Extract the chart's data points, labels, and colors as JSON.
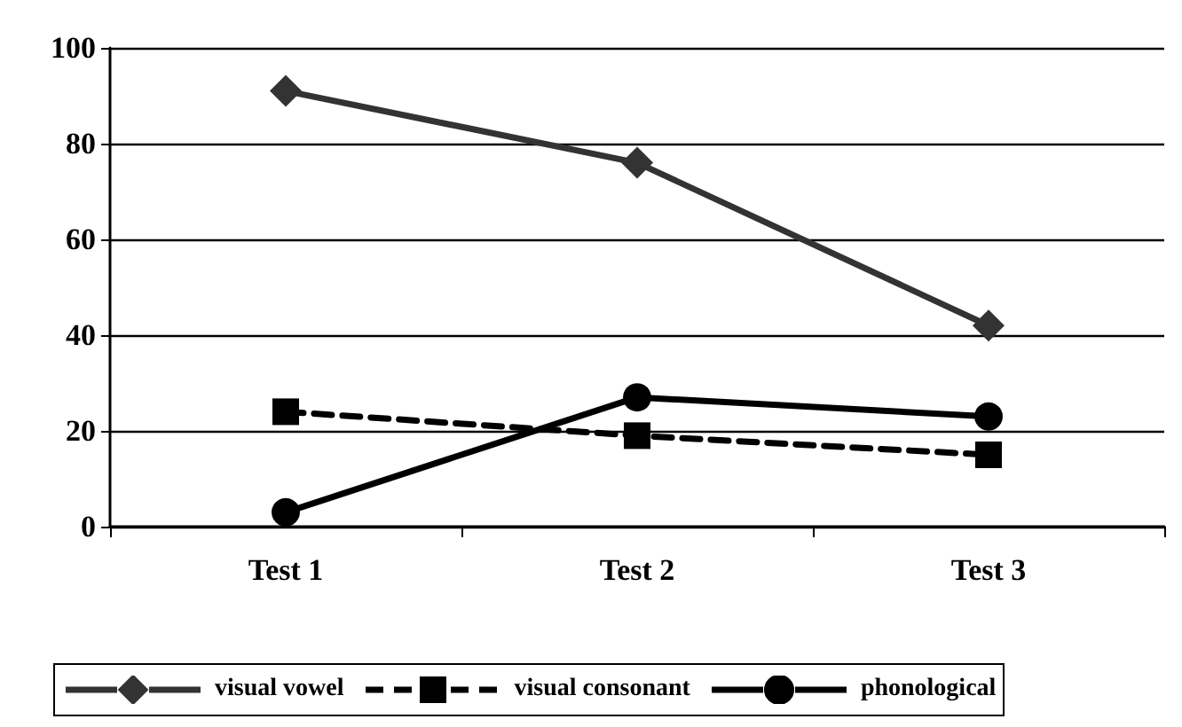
{
  "chart_data": {
    "type": "line",
    "categories": [
      "Test 1",
      "Test 2",
      "Test 3"
    ],
    "series": [
      {
        "name": "visual vowel",
        "color": "#333333",
        "marker": "diamond",
        "line_style": "solid",
        "values": [
          91,
          76,
          42
        ]
      },
      {
        "name": "visual consonant",
        "color": "#000000",
        "marker": "square",
        "line_style": "dashed",
        "values": [
          24,
          19,
          15
        ]
      },
      {
        "name": "phonological",
        "color": "#000000",
        "marker": "circle",
        "line_style": "solid",
        "values": [
          3,
          27,
          23
        ]
      }
    ],
    "ylim": [
      0,
      100
    ],
    "yticks": [
      0,
      20,
      40,
      60,
      80,
      100
    ],
    "grid": "y",
    "legend": "bottom"
  }
}
